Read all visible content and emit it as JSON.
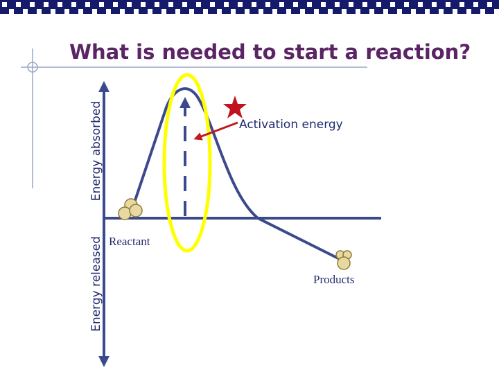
{
  "slide": {
    "title": "What is needed to start a reaction?",
    "y_axis": {
      "upper_label": "Energy absorbed",
      "lower_label": "Energy released"
    },
    "annotations": {
      "activation": "Activation energy",
      "reactant": "Reactant",
      "products": "Products"
    }
  }
}
